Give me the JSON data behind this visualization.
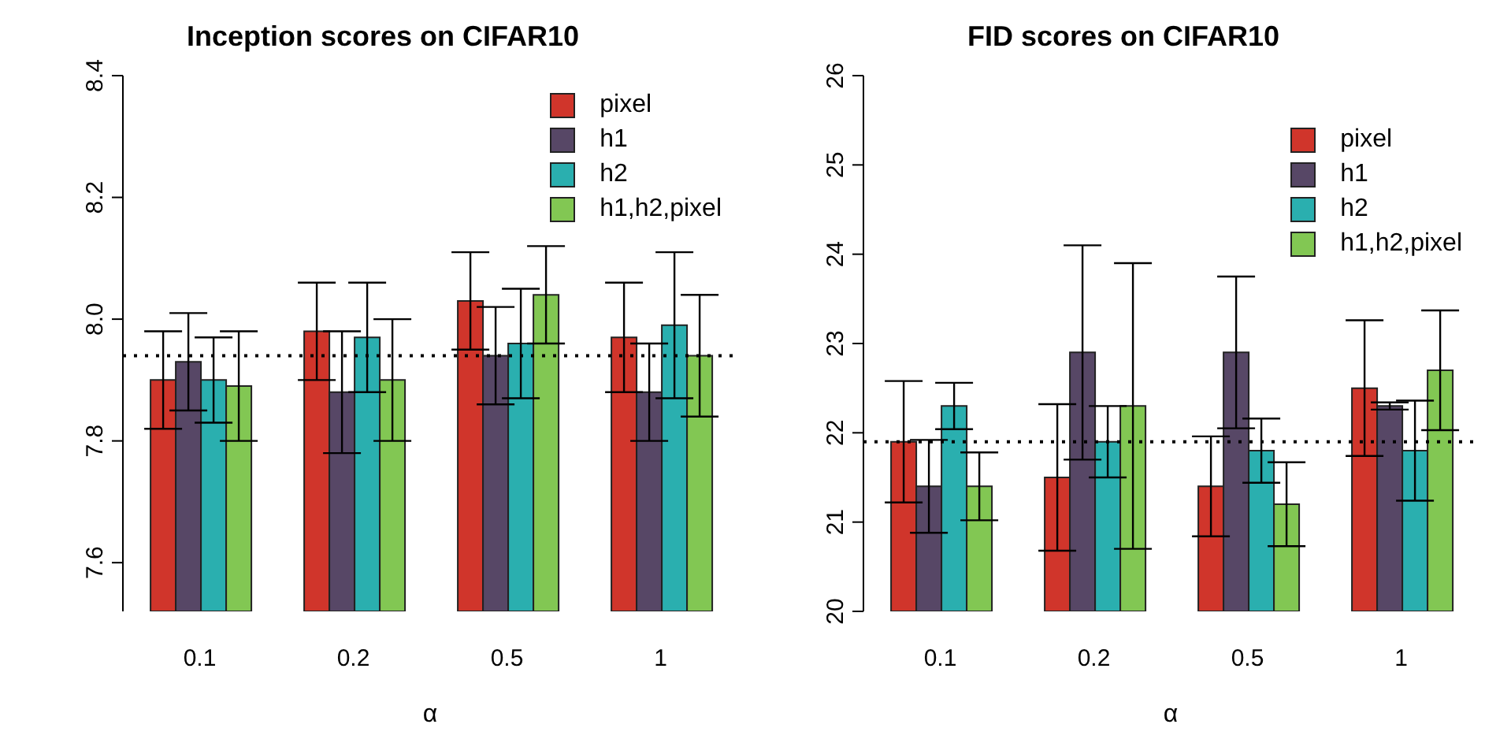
{
  "chart_data": [
    {
      "type": "bar",
      "title": "Inception scores on CIFAR10",
      "xlabel": "α",
      "categories": [
        "0.1",
        "0.2",
        "0.5",
        "1"
      ],
      "ylim": [
        7.52,
        8.4
      ],
      "yticks": [
        7.6,
        7.8,
        {
          "value": 8,
          "label": "8.0"
        },
        8.2,
        8.4
      ],
      "legend": "top right",
      "grid": false,
      "series": [
        {
          "name": "pixel",
          "color": "#d0352b",
          "values": [
            7.9,
            7.98,
            8.03,
            7.97
          ],
          "errors": [
            0.08,
            0.08,
            0.08,
            0.09
          ]
        },
        {
          "name": "h1",
          "color": "#574766",
          "values": [
            7.93,
            7.88,
            7.94,
            7.88
          ],
          "errors": [
            0.08,
            0.1,
            0.08,
            0.08
          ]
        },
        {
          "name": "h2",
          "color": "#2aafaf",
          "values": [
            7.9,
            7.97,
            7.96,
            7.99
          ],
          "errors": [
            0.07,
            0.09,
            0.09,
            0.12
          ]
        },
        {
          "name": "h1,h2,pixel",
          "color": "#82c753",
          "values": [
            7.89,
            7.9,
            8.04,
            7.94
          ],
          "errors": [
            0.09,
            0.1,
            0.08,
            0.1
          ]
        }
      ],
      "ref_lines": [
        {
          "axis": "y",
          "value": 7.94,
          "line_style": "dotted",
          "color": "#000000"
        }
      ]
    },
    {
      "type": "bar",
      "title": "FID scores on CIFAR10",
      "xlabel": "α",
      "categories": [
        "0.1",
        "0.2",
        "0.5",
        "1"
      ],
      "ylim": [
        20,
        26
      ],
      "yticks": [
        20,
        21,
        22,
        23,
        24,
        25,
        26
      ],
      "legend": "top right",
      "grid": false,
      "series": [
        {
          "name": "pixel",
          "color": "#d0352b",
          "values": [
            21.9,
            21.5,
            21.4,
            22.5
          ],
          "errors": [
            0.68,
            0.82,
            0.56,
            0.76
          ]
        },
        {
          "name": "h1",
          "color": "#574766",
          "values": [
            21.4,
            22.9,
            22.9,
            22.3
          ],
          "errors": [
            0.52,
            1.2,
            0.85,
            0.04
          ]
        },
        {
          "name": "h2",
          "color": "#2aafaf",
          "values": [
            22.3,
            21.9,
            21.8,
            21.8
          ],
          "errors": [
            0.26,
            0.4,
            0.36,
            0.56
          ]
        },
        {
          "name": "h1,h2,pixel",
          "color": "#82c753",
          "values": [
            21.4,
            22.3,
            21.2,
            22.7
          ],
          "errors": [
            0.38,
            1.6,
            0.47,
            0.67
          ]
        }
      ],
      "ref_lines": [
        {
          "axis": "y",
          "value": 21.9,
          "line_style": "dotted",
          "color": "#000000"
        }
      ]
    }
  ]
}
